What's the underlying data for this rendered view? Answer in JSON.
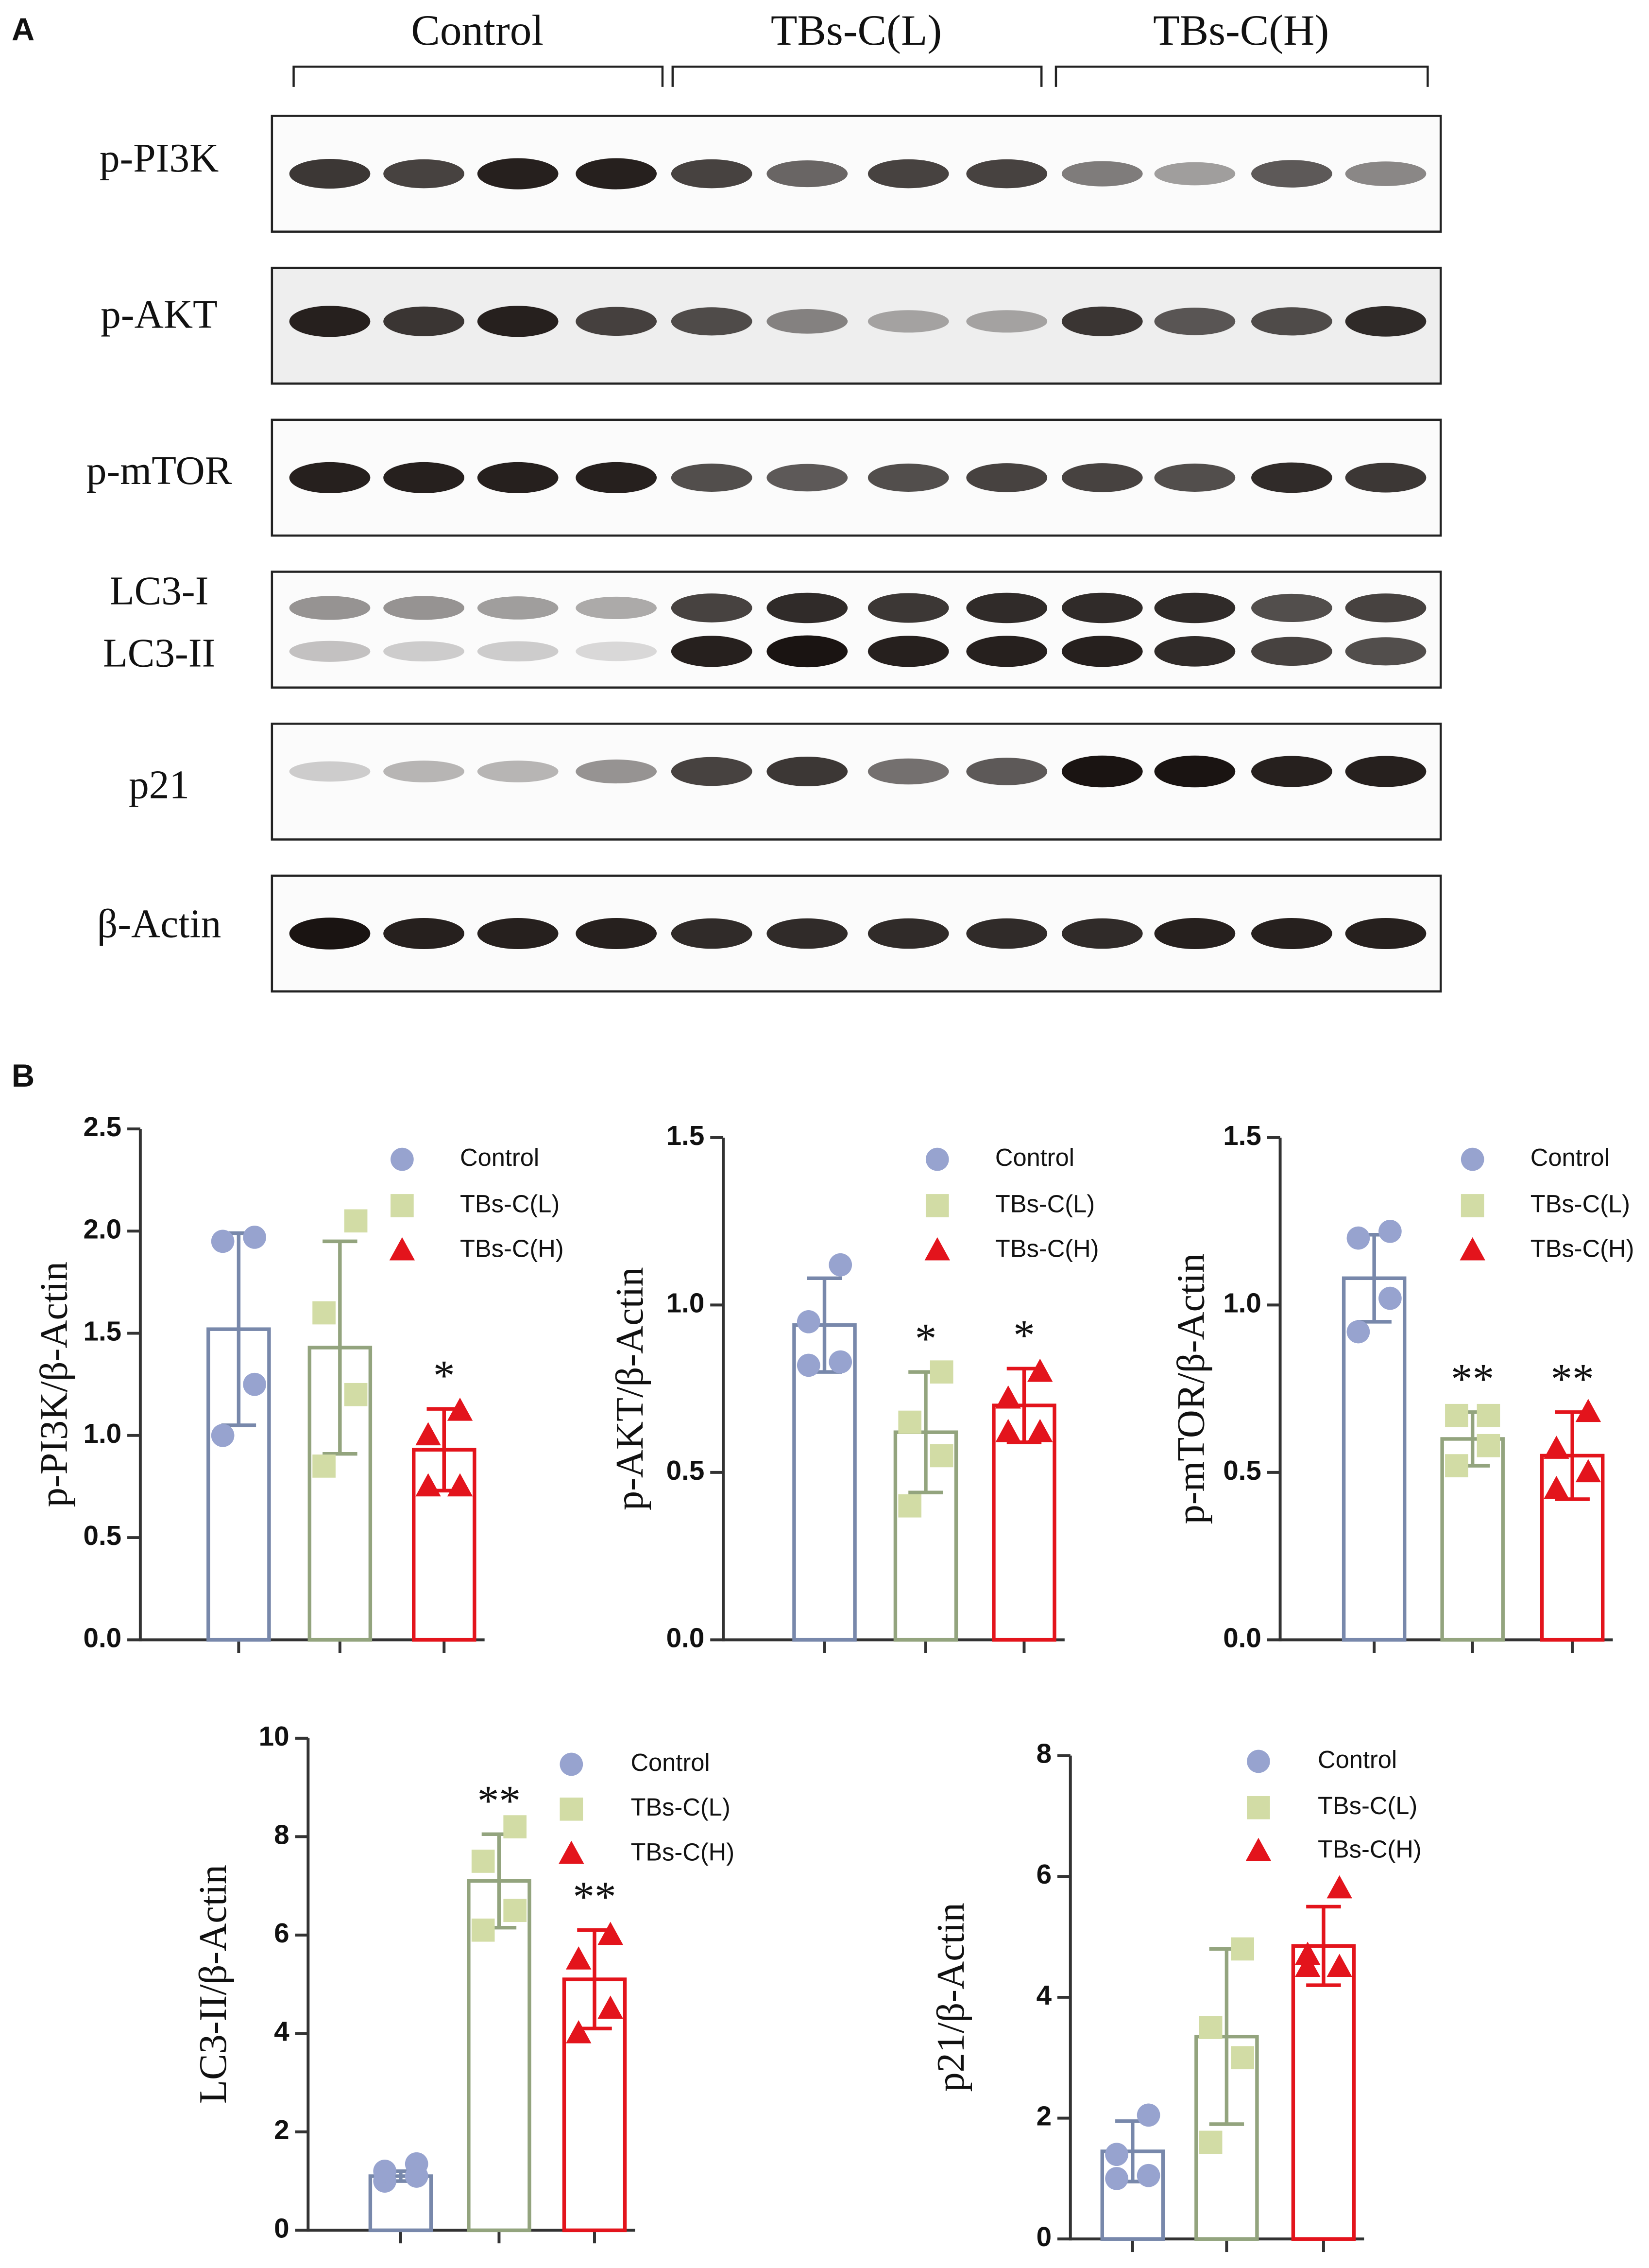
{
  "panels": {
    "a": "A",
    "b": "B"
  },
  "blot": {
    "groups": [
      "Control",
      "TBs-C(L)",
      "TBs-C(H)"
    ],
    "rows": [
      "p-PI3K",
      "p-AKT",
      "p-mTOR",
      "LC3-I",
      "LC3-II",
      "p21",
      "β-Actin"
    ]
  },
  "chart_data": [
    {
      "type": "bar",
      "ylabel": "p-PI3K/β-Actin",
      "ylim": [
        0,
        2.5
      ],
      "yticks": [
        {
          "value": 0,
          "label": "0.0"
        },
        0.5,
        {
          "value": 1,
          "label": "1.0"
        },
        1.5,
        {
          "value": 2,
          "label": "2.0"
        },
        2.5
      ],
      "series": [
        {
          "name": "Control",
          "color": "#7888ab",
          "point_color": "#97a3cf",
          "marker": "circle",
          "values": [
            1.52
          ],
          "errors": [
            0.47
          ],
          "points": [
            1.0,
            1.25,
            1.95,
            1.97
          ]
        },
        {
          "name": "TBs-C(L)",
          "color": "#93a47e",
          "point_color": "#d2dca5",
          "marker": "square",
          "values": [
            1.43
          ],
          "errors": [
            0.52
          ],
          "points": [
            0.85,
            1.2,
            1.6,
            2.05
          ]
        },
        {
          "name": "TBs-C(H)",
          "color": "#e3141c",
          "point_color": "#e3141c",
          "marker": "triangle",
          "values": [
            0.93
          ],
          "errors": [
            0.2
          ],
          "points": [
            0.75,
            0.75,
            1.0,
            1.12
          ],
          "annotation": "*"
        }
      ]
    },
    {
      "type": "bar",
      "ylabel": "p-AKT/β-Actin",
      "ylim": [
        0,
        1.5
      ],
      "yticks": [
        {
          "value": 0,
          "label": "0.0"
        },
        0.5,
        {
          "value": 1,
          "label": "1.0"
        },
        1.5
      ],
      "series": [
        {
          "name": "Control",
          "color": "#7888ab",
          "point_color": "#97a3cf",
          "marker": "circle",
          "values": [
            0.94
          ],
          "errors": [
            0.14
          ],
          "points": [
            0.82,
            0.83,
            0.95,
            1.12
          ]
        },
        {
          "name": "TBs-C(L)",
          "color": "#93a47e",
          "point_color": "#d2dca5",
          "marker": "square",
          "values": [
            0.62
          ],
          "errors": [
            0.18
          ],
          "points": [
            0.4,
            0.55,
            0.65,
            0.8
          ],
          "annotation": "*"
        },
        {
          "name": "TBs-C(H)",
          "color": "#e3141c",
          "point_color": "#e3141c",
          "marker": "triangle",
          "values": [
            0.7
          ],
          "errors": [
            0.11
          ],
          "points": [
            0.62,
            0.62,
            0.72,
            0.8
          ],
          "annotation": "*"
        }
      ]
    },
    {
      "type": "bar",
      "ylabel": "p-mTOR/β-Actin",
      "ylim": [
        0,
        1.5
      ],
      "yticks": [
        {
          "value": 0,
          "label": "0.0"
        },
        0.5,
        {
          "value": 1,
          "label": "1.0"
        },
        1.5
      ],
      "series": [
        {
          "name": "Control",
          "color": "#7888ab",
          "point_color": "#97a3cf",
          "marker": "circle",
          "values": [
            1.08
          ],
          "errors": [
            0.13
          ],
          "points": [
            0.92,
            1.02,
            1.2,
            1.22
          ]
        },
        {
          "name": "TBs-C(L)",
          "color": "#93a47e",
          "point_color": "#d2dca5",
          "marker": "square",
          "values": [
            0.6
          ],
          "errors": [
            0.08
          ],
          "points": [
            0.52,
            0.58,
            0.67,
            0.67
          ],
          "annotation": "**"
        },
        {
          "name": "TBs-C(H)",
          "color": "#e3141c",
          "point_color": "#e3141c",
          "marker": "triangle",
          "values": [
            0.55
          ],
          "errors": [
            0.13
          ],
          "points": [
            0.45,
            0.5,
            0.57,
            0.68
          ],
          "annotation": "**"
        }
      ]
    },
    {
      "type": "bar",
      "ylabel": "LC3-II/β-Actin",
      "ylim": [
        0,
        10
      ],
      "yticks": [
        0,
        2,
        4,
        6,
        8,
        10
      ],
      "series": [
        {
          "name": "Control",
          "color": "#7888ab",
          "point_color": "#97a3cf",
          "marker": "circle",
          "values": [
            1.1
          ],
          "errors": [
            0.1
          ],
          "points": [
            1.0,
            1.1,
            1.2,
            1.35
          ]
        },
        {
          "name": "TBs-C(L)",
          "color": "#93a47e",
          "point_color": "#d2dca5",
          "marker": "square",
          "values": [
            7.1
          ],
          "errors": [
            0.95
          ],
          "points": [
            6.1,
            6.5,
            7.5,
            8.2
          ],
          "annotation": "**"
        },
        {
          "name": "TBs-C(H)",
          "color": "#e3141c",
          "point_color": "#e3141c",
          "marker": "triangle",
          "values": [
            5.1
          ],
          "errors": [
            1.0
          ],
          "points": [
            4.0,
            4.5,
            5.5,
            6.0
          ],
          "annotation": "**"
        }
      ]
    },
    {
      "type": "bar",
      "ylabel": "p21/β-Actin",
      "ylim": [
        0,
        8
      ],
      "yticks": [
        0,
        2,
        4,
        6,
        8
      ],
      "series": [
        {
          "name": "Control",
          "color": "#7888ab",
          "point_color": "#97a3cf",
          "marker": "circle",
          "values": [
            1.45
          ],
          "errors": [
            0.5
          ],
          "points": [
            1.0,
            1.05,
            1.4,
            2.05
          ]
        },
        {
          "name": "TBs-C(L)",
          "color": "#93a47e",
          "point_color": "#d2dca5",
          "marker": "square",
          "values": [
            3.35
          ],
          "errors": [
            1.45
          ],
          "points": [
            1.6,
            3.0,
            3.5,
            4.8
          ]
        },
        {
          "name": "TBs-C(H)",
          "color": "#e3141c",
          "point_color": "#e3141c",
          "marker": "triangle",
          "values": [
            4.85
          ],
          "errors": [
            0.65
          ],
          "points": [
            4.5,
            4.5,
            4.7,
            5.8
          ]
        }
      ]
    }
  ]
}
